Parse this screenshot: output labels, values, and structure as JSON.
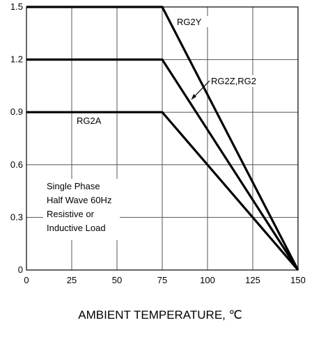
{
  "chart_data": {
    "type": "line",
    "xlabel": "AMBIENT TEMPERATURE, ℃",
    "ylabel": "",
    "xlim": [
      0,
      150
    ],
    "ylim": [
      0,
      1.5
    ],
    "x_ticks": [
      "0",
      "25",
      "50",
      "75",
      "100",
      "125",
      "150"
    ],
    "y_ticks": [
      "0",
      "0.3",
      "0.6",
      "0.9",
      "1.2",
      "1.5"
    ],
    "grid": true,
    "series": [
      {
        "name": "RG2Y",
        "x": [
          0,
          75,
          150
        ],
        "y": [
          1.5,
          1.5,
          0
        ]
      },
      {
        "name": "RG2Z,RG2",
        "x": [
          0,
          75,
          150
        ],
        "y": [
          1.2,
          1.2,
          0
        ]
      },
      {
        "name": "RG2A",
        "x": [
          0,
          75,
          150
        ],
        "y": [
          0.9,
          0.9,
          0
        ]
      }
    ],
    "annotation": [
      "Single Phase",
      "Half Wave 60Hz",
      "Resistive or",
      "Inductive Load"
    ]
  }
}
